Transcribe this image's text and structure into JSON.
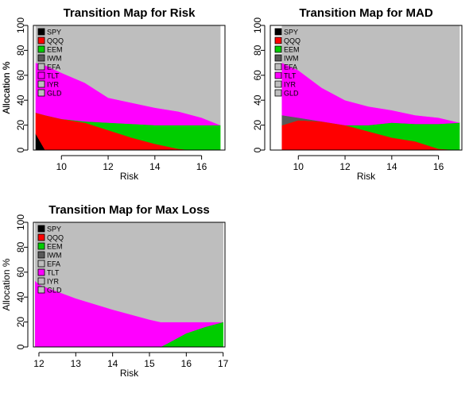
{
  "colors": {
    "SPY": "#000000",
    "QQQ": "#ff0000",
    "EEM": "#00cd00",
    "IWM": "#595959",
    "EFA": "#bebebe",
    "TLT": "#ff00ff",
    "IYR": "#bebebe",
    "GLD": "#bebebe"
  },
  "chart_data": [
    {
      "type": "area",
      "title": "Transition Map for Risk",
      "xlabel": "Risk",
      "ylabel": "Allocation %",
      "xlim": [
        8.8,
        17.0
      ],
      "ylim": [
        0,
        100
      ],
      "xticks": [
        10,
        12,
        14,
        16
      ],
      "yticks": [
        0,
        20,
        40,
        60,
        80,
        100
      ],
      "legend_position": "top-left",
      "x": [
        8.9,
        9.3,
        10.0,
        11.0,
        12.0,
        13.0,
        14.0,
        15.0,
        15.6,
        16.0,
        16.8
      ],
      "series": [
        {
          "name": "SPY",
          "values": [
            13,
            0,
            0,
            0,
            0,
            0,
            0,
            0,
            0,
            0,
            0
          ]
        },
        {
          "name": "QQQ",
          "values": [
            17,
            28,
            25,
            22,
            16,
            10,
            5,
            1,
            0,
            0,
            0
          ]
        },
        {
          "name": "EEM",
          "values": [
            0,
            0,
            0,
            1,
            6,
            11,
            15,
            19,
            20,
            20,
            20
          ]
        },
        {
          "name": "IWM",
          "values": [
            0,
            0,
            0,
            0,
            0,
            0,
            0,
            0,
            0,
            0,
            0
          ]
        },
        {
          "name": "EFA",
          "values": [
            0,
            0,
            0,
            0,
            0,
            0,
            0,
            0,
            0,
            0,
            0
          ]
        },
        {
          "name": "TLT",
          "values": [
            40,
            40,
            37,
            31,
            20,
            17,
            14,
            11,
            8,
            6,
            0
          ]
        },
        {
          "name": "IYR",
          "values": [
            0,
            0,
            0,
            0,
            0,
            0,
            0,
            0,
            0,
            0,
            0
          ]
        },
        {
          "name": "GLD",
          "values": [
            30,
            32,
            38,
            46,
            58,
            62,
            66,
            69,
            72,
            74,
            80
          ]
        }
      ]
    },
    {
      "type": "area",
      "title": "Transition Map for MAD",
      "xlabel": "Risk",
      "ylabel": "Allocation %",
      "xlim": [
        8.8,
        17.0
      ],
      "ylim": [
        0,
        100
      ],
      "xticks": [
        10,
        12,
        14,
        16
      ],
      "yticks": [
        0,
        20,
        40,
        60,
        80,
        100
      ],
      "legend_position": "top-left",
      "x": [
        9.3,
        10.0,
        11.0,
        12.0,
        13.0,
        14.0,
        15.0,
        16.0,
        16.9
      ],
      "series": [
        {
          "name": "SPY",
          "values": [
            0,
            0,
            0,
            0,
            0,
            0,
            0,
            0,
            0
          ]
        },
        {
          "name": "QQQ",
          "values": [
            20,
            24,
            23,
            20,
            15,
            10,
            7,
            1,
            0
          ]
        },
        {
          "name": "EEM",
          "values": [
            0,
            0,
            0,
            0,
            5,
            12,
            14,
            20,
            22
          ]
        },
        {
          "name": "IWM",
          "values": [
            8,
            2,
            0,
            0,
            0,
            0,
            0,
            0,
            0
          ]
        },
        {
          "name": "EFA",
          "values": [
            0,
            0,
            0,
            0,
            0,
            0,
            0,
            0,
            0
          ]
        },
        {
          "name": "TLT",
          "values": [
            42,
            38,
            27,
            20,
            15,
            10,
            7,
            5,
            0
          ]
        },
        {
          "name": "IYR",
          "values": [
            0,
            0,
            0,
            0,
            0,
            0,
            0,
            0,
            0
          ]
        },
        {
          "name": "GLD",
          "values": [
            30,
            36,
            50,
            60,
            65,
            68,
            72,
            74,
            78
          ]
        }
      ]
    },
    {
      "type": "area",
      "title": "Transition Map for Max Loss",
      "xlabel": "Risk",
      "ylabel": "Allocation %",
      "xlim": [
        11.85,
        17.05
      ],
      "ylim": [
        0,
        100
      ],
      "xticks": [
        12,
        13,
        14,
        15,
        16,
        17
      ],
      "yticks": [
        0,
        20,
        40,
        60,
        80,
        100
      ],
      "legend_position": "top-left",
      "x": [
        11.9,
        12.0,
        13.0,
        14.0,
        15.0,
        15.3,
        15.5,
        16.0,
        16.5,
        17.0
      ],
      "series": [
        {
          "name": "SPY",
          "values": [
            0,
            0,
            0,
            0,
            0,
            0,
            0,
            0,
            0,
            0
          ]
        },
        {
          "name": "QQQ",
          "values": [
            0,
            0,
            0,
            0,
            0,
            0,
            0,
            0,
            0,
            0
          ]
        },
        {
          "name": "EEM",
          "values": [
            0,
            0,
            0,
            0,
            0,
            0,
            3,
            11,
            16,
            20
          ]
        },
        {
          "name": "IWM",
          "values": [
            0,
            0,
            0,
            0,
            0,
            0,
            0,
            0,
            0,
            0
          ]
        },
        {
          "name": "EFA",
          "values": [
            0,
            0,
            0,
            0,
            0,
            0,
            0,
            0,
            0,
            0
          ]
        },
        {
          "name": "TLT",
          "values": [
            53,
            50,
            39,
            30,
            22,
            20,
            17,
            9,
            4,
            0
          ]
        },
        {
          "name": "IYR",
          "values": [
            0,
            0,
            0,
            0,
            0,
            0,
            0,
            0,
            0,
            0
          ]
        },
        {
          "name": "GLD",
          "values": [
            47,
            50,
            61,
            70,
            78,
            80,
            80,
            80,
            80,
            80
          ]
        }
      ]
    }
  ]
}
